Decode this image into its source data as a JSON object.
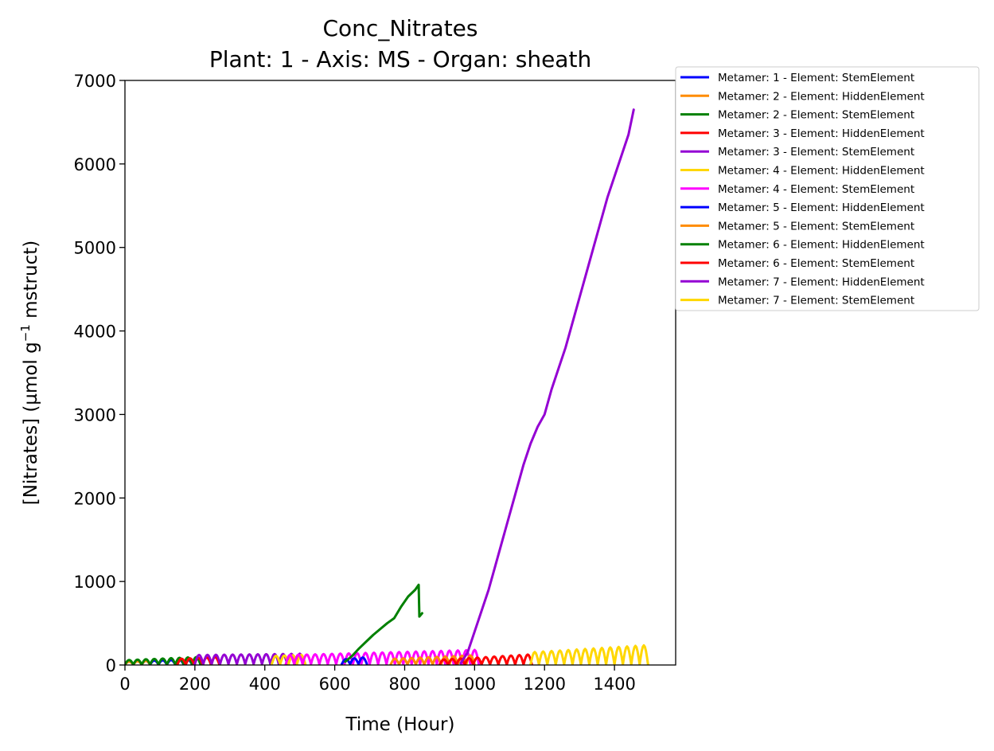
{
  "chart_data": {
    "type": "line",
    "title": "Conc_Nitrates",
    "subtitle": "Plant: 1 - Axis: MS - Organ: sheath",
    "xlabel": "Time (Hour)",
    "ylabel_main": "[Nitrates] (µmol g",
    "ylabel_sup": "−1",
    "ylabel_tail": " mstruct)",
    "xlim": [
      0,
      1575
    ],
    "ylim": [
      0,
      7000
    ],
    "xticks": [
      0,
      200,
      400,
      600,
      800,
      1000,
      1200,
      1400
    ],
    "yticks": [
      0,
      1000,
      2000,
      3000,
      4000,
      5000,
      6000,
      7000
    ],
    "grid": false,
    "legend_position": "outside-upper-right",
    "series": [
      {
        "name": "Metamer: 1 - Element: StemElement",
        "color": "#0000ff",
        "osc": {
          "start": 0,
          "end": 180,
          "period": 24,
          "base": 5,
          "amp0": 40,
          "amp1": 60
        }
      },
      {
        "name": "Metamer: 2 - Element: HiddenElement",
        "color": "#ff8c00",
        "osc": {
          "start": 0,
          "end": 80,
          "period": 24,
          "base": 5,
          "amp0": 35,
          "amp1": 45
        }
      },
      {
        "name": "Metamer: 2 - Element: StemElement",
        "color": "#008000",
        "osc": {
          "start": 0,
          "end": 220,
          "period": 24,
          "base": 5,
          "amp0": 55,
          "amp1": 90
        }
      },
      {
        "name": "Metamer: 3 - Element: HiddenElement",
        "color": "#ff0000",
        "osc": {
          "start": 150,
          "end": 260,
          "period": 24,
          "base": 5,
          "amp0": 70,
          "amp1": 90
        }
      },
      {
        "name": "Metamer: 3 - Element: StemElement",
        "color": "#9400d3",
        "osc": {
          "start": 200,
          "end": 500,
          "period": 24,
          "base": 10,
          "amp0": 110,
          "amp1": 125
        }
      },
      {
        "name": "Metamer: 4 - Element: HiddenElement",
        "color": "#ffd700",
        "osc": {
          "start": 420,
          "end": 520,
          "period": 24,
          "base": 10,
          "amp0": 100,
          "amp1": 110
        }
      },
      {
        "name": "Metamer: 4 - Element: StemElement",
        "color": "#ff00ff",
        "osc": {
          "start": 460,
          "end": 1000,
          "period": 24,
          "base": 10,
          "amp0": 110,
          "amp1": 170
        }
      },
      {
        "name": "Metamer: 5 - Element: HiddenElement",
        "color": "#0000ff",
        "osc": {
          "start": 620,
          "end": 700,
          "period": 24,
          "base": 10,
          "amp0": 60,
          "amp1": 80
        }
      },
      {
        "name": "Metamer: 5 - Element: StemElement",
        "color": "#ff8c00",
        "osc": {
          "start": 760,
          "end": 1000,
          "period": 24,
          "base": 5,
          "amp0": 70,
          "amp1": 110
        }
      },
      {
        "name": "Metamer: 6 - Element: HiddenElement",
        "color": "#008000",
        "x": [
          630,
          650,
          670,
          690,
          710,
          730,
          750,
          770,
          790,
          810,
          830,
          840,
          842,
          850
        ],
        "y": [
          40,
          110,
          200,
          280,
          360,
          430,
          500,
          560,
          700,
          820,
          900,
          960,
          580,
          620
        ]
      },
      {
        "name": "Metamer: 6 - Element: StemElement",
        "color": "#ff0000",
        "osc": {
          "start": 900,
          "end": 1160,
          "period": 24,
          "base": 5,
          "amp0": 60,
          "amp1": 120
        }
      },
      {
        "name": "Metamer: 7 - Element: HiddenElement",
        "color": "#9400d3",
        "x": [
          960,
          980,
          1000,
          1020,
          1040,
          1060,
          1080,
          1100,
          1120,
          1140,
          1160,
          1180,
          1200,
          1220,
          1240,
          1260,
          1280,
          1300,
          1320,
          1340,
          1360,
          1380,
          1400,
          1420,
          1440,
          1455
        ],
        "y": [
          20,
          150,
          400,
          650,
          900,
          1200,
          1500,
          1800,
          2100,
          2400,
          2650,
          2850,
          3000,
          3300,
          3550,
          3800,
          4100,
          4400,
          4700,
          5000,
          5300,
          5600,
          5850,
          6100,
          6350,
          6650
        ]
      },
      {
        "name": "Metamer: 7 - Element: StemElement",
        "color": "#ffd700",
        "osc": {
          "start": 1160,
          "end": 1500,
          "period": 24,
          "base": 5,
          "amp0": 150,
          "amp1": 230
        }
      }
    ]
  }
}
